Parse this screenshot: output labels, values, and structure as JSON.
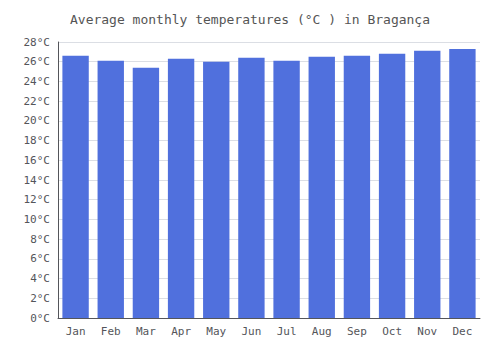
{
  "chart_data": {
    "type": "bar",
    "title": "Average monthly temperatures (°C ) in Bragança",
    "categories": [
      "Jan",
      "Feb",
      "Mar",
      "Apr",
      "May",
      "Jun",
      "Jul",
      "Aug",
      "Sep",
      "Oct",
      "Nov",
      "Dec"
    ],
    "values": [
      26.6,
      26.1,
      25.4,
      26.3,
      26.0,
      26.4,
      26.1,
      26.5,
      26.6,
      26.8,
      27.1,
      27.3
    ],
    "ylim": [
      0,
      28
    ],
    "yticks": [
      {
        "value": 0,
        "label": "0°C"
      },
      {
        "value": 2,
        "label": "2°C"
      },
      {
        "value": 4,
        "label": "4°C"
      },
      {
        "value": 6,
        "label": "6°C"
      },
      {
        "value": 8,
        "label": "8°C"
      },
      {
        "value": 10,
        "label": "10°C"
      },
      {
        "value": 12,
        "label": "12°C"
      },
      {
        "value": 14,
        "label": "14°C"
      },
      {
        "value": 16,
        "label": "16°C"
      },
      {
        "value": 18,
        "label": "18°C"
      },
      {
        "value": 20,
        "label": "20°C"
      },
      {
        "value": 22,
        "label": "22°C"
      },
      {
        "value": 24,
        "label": "24°C"
      },
      {
        "value": 26,
        "label": "26°C"
      },
      {
        "value": 28,
        "label": "28°C"
      }
    ],
    "grid": true
  }
}
